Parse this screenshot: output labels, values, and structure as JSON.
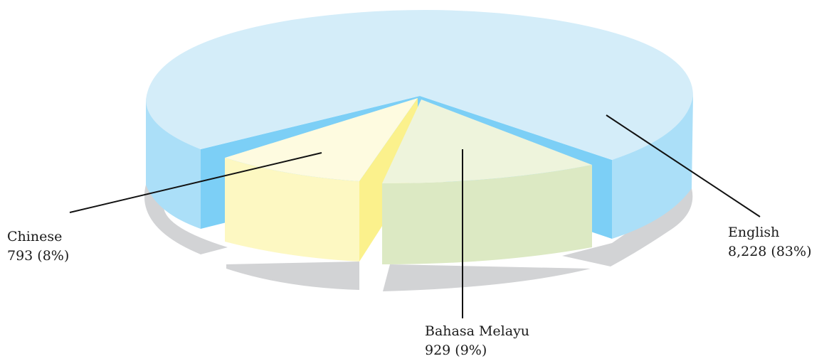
{
  "chart_data": {
    "type": "pie",
    "style": "3d-exploded",
    "slices": [
      {
        "label": "English",
        "value": 8228,
        "display_value": "8,228",
        "percent": "83%"
      },
      {
        "label": "Bahasa Melayu",
        "value": 929,
        "display_value": "929",
        "percent": "9%"
      },
      {
        "label": "Chinese",
        "value": 793,
        "display_value": "793",
        "percent": "8%"
      }
    ],
    "colors": {
      "English": {
        "top": "#d4edf9",
        "side": "#abdff8",
        "dark": "#7ccff6"
      },
      "Bahasa Melayu": {
        "top": "#eef4dc",
        "side": "#dce9c3",
        "dark": "#c8dca8"
      },
      "Chinese": {
        "top": "#fefbe0",
        "side": "#fdf8c2",
        "dark": "#fbf18c"
      },
      "shadow": "#d2d3d5"
    }
  },
  "labels": {
    "english": {
      "name": "English",
      "value": "8,228 (83%)"
    },
    "bahasa": {
      "name": "Bahasa Melayu",
      "value": "929 (9%)"
    },
    "chinese": {
      "name": "Chinese",
      "value": "793 (8%)"
    }
  }
}
